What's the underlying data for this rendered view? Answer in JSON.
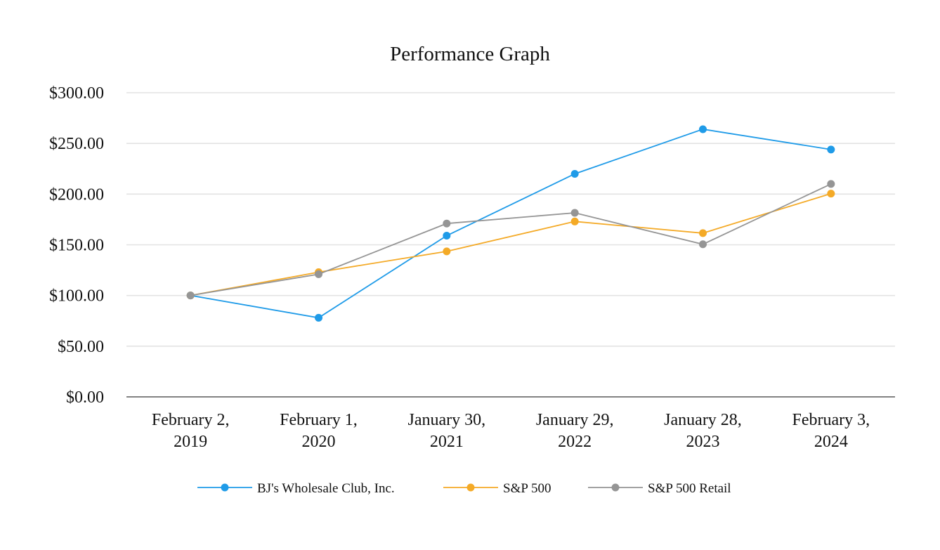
{
  "chart_data": {
    "type": "line",
    "title": "Performance Graph",
    "xlabel": "",
    "ylabel": "",
    "categories": [
      [
        "February 2,",
        "2019"
      ],
      [
        "February 1,",
        "2020"
      ],
      [
        "January 30,",
        "2021"
      ],
      [
        "January 29,",
        "2022"
      ],
      [
        "January 28,",
        "2023"
      ],
      [
        "February 3,",
        "2024"
      ]
    ],
    "ylim": [
      0,
      300
    ],
    "y_ticks": [
      0,
      50,
      100,
      150,
      200,
      250,
      300
    ],
    "y_tick_labels": [
      "$0.00",
      "$50.00",
      "$100.00",
      "$150.00",
      "$200.00",
      "$250.00",
      "$300.00"
    ],
    "grid": true,
    "legend_position": "bottom",
    "series": [
      {
        "name": "BJ's Wholesale Club, Inc.",
        "color": "#1f9be8",
        "values": [
          100.0,
          78.0,
          159.0,
          220.0,
          264.0,
          244.0
        ]
      },
      {
        "name": "S&P 500",
        "color": "#f4aa27",
        "values": [
          100.0,
          123.0,
          143.5,
          173.0,
          161.5,
          200.5
        ]
      },
      {
        "name": "S&P 500 Retail",
        "color": "#959595",
        "values": [
          100.0,
          121.0,
          171.0,
          181.5,
          150.5,
          210.0
        ]
      }
    ]
  }
}
